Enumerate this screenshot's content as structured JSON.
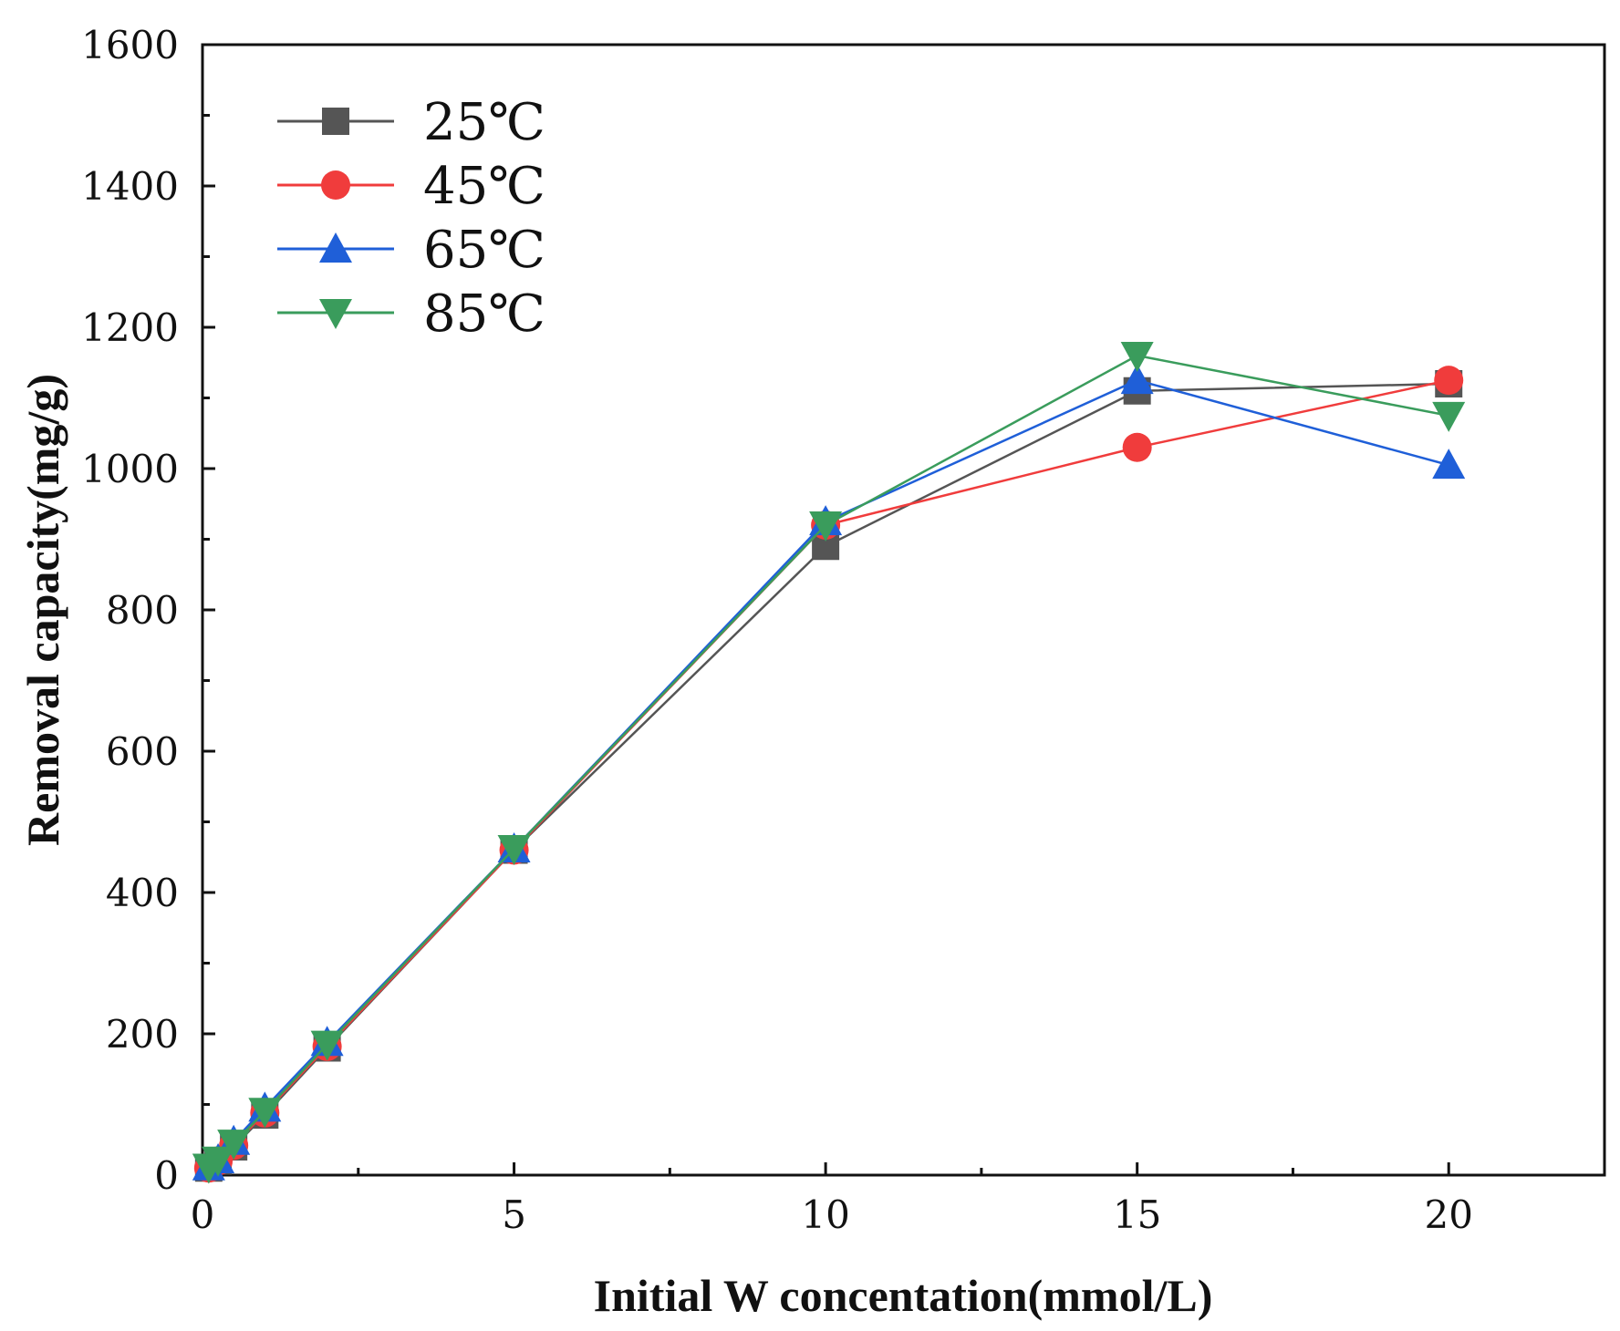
{
  "chart_data": {
    "type": "line",
    "title": "",
    "xlabel": "Initial W concentation(mmol/L)",
    "ylabel": "Removal capacity(mg/g)",
    "xlim": [
      0,
      22.5
    ],
    "ylim": [
      0,
      1600
    ],
    "xticks": [
      0,
      5,
      10,
      15,
      20
    ],
    "xticks_minor": [
      2.5,
      7.5,
      12.5,
      17.5,
      22.5
    ],
    "yticks": [
      0,
      200,
      400,
      600,
      800,
      1000,
      1200,
      1400,
      1600
    ],
    "grid": false,
    "legend_position": "top-left",
    "x": [
      0.1,
      0.25,
      0.5,
      1,
      2,
      5,
      10,
      15,
      20
    ],
    "series": [
      {
        "name": "25℃",
        "color": "#555555",
        "marker": "square",
        "values": [
          10,
          20,
          40,
          85,
          180,
          460,
          890,
          1110,
          1120
        ]
      },
      {
        "name": "45℃",
        "color": "#f03c3c",
        "marker": "circle",
        "values": [
          10,
          20,
          42,
          88,
          182,
          460,
          920,
          1030,
          1125
        ]
      },
      {
        "name": "65℃",
        "color": "#1f5fd8",
        "marker": "triangle-up",
        "values": [
          12,
          22,
          48,
          95,
          188,
          462,
          925,
          1125,
          1005
        ]
      },
      {
        "name": "85℃",
        "color": "#3a9c5c",
        "marker": "triangle-down",
        "values": [
          11,
          21,
          45,
          90,
          185,
          462,
          920,
          1160,
          1075
        ]
      }
    ]
  }
}
